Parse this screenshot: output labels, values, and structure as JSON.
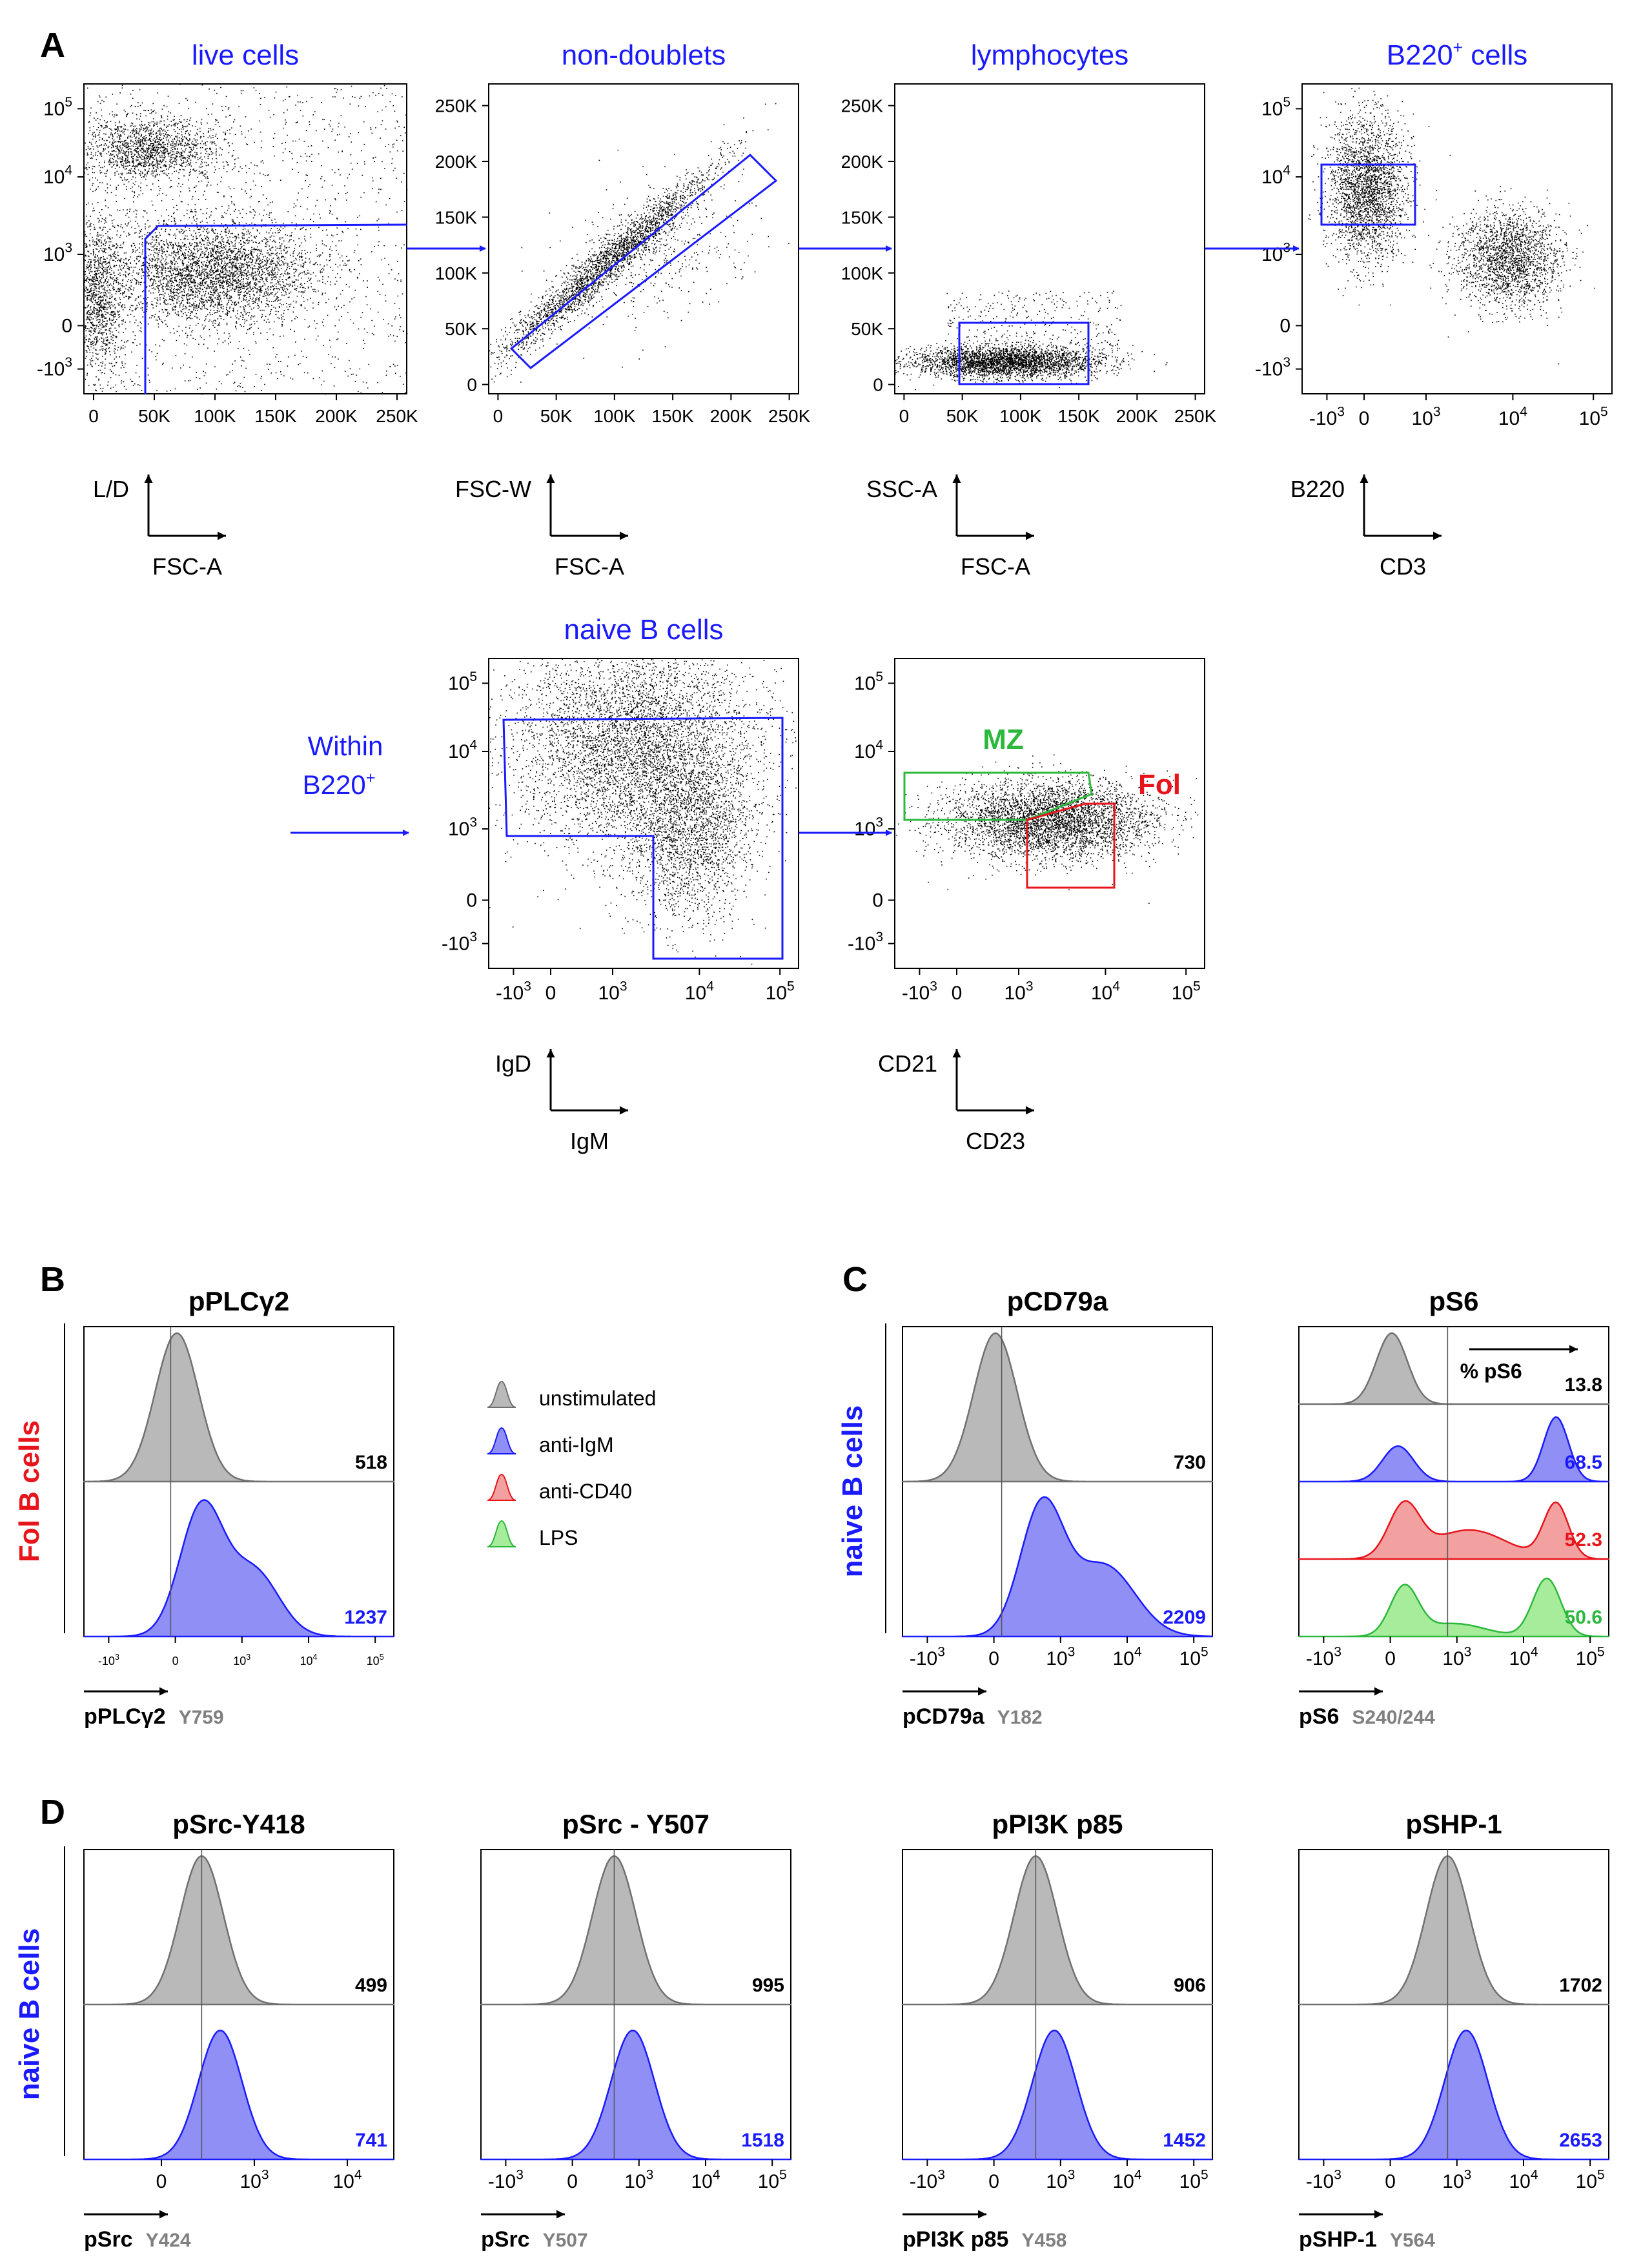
{
  "panel_letters": [
    "A",
    "B",
    "C",
    "D"
  ],
  "colors": {
    "blue": "#1a1aff",
    "red": "#e8141b",
    "green": "#2bb83c",
    "black": "#000000",
    "gray_fill": "#b9b9b9",
    "blue_fill": "#8f8ff5",
    "red_fill": "#f3a0a0",
    "green_fill": "#a6ec9a",
    "value_gray": "#808080"
  },
  "gating": {
    "axis_x": {
      "log": {
        "labels": [
          "-10",
          "0",
          "10",
          "10",
          "10"
        ],
        "exponents": [
          "3",
          "",
          "3",
          "4",
          "5"
        ]
      },
      "scatter_lin": [
        "0",
        "50K",
        "100K",
        "150K",
        "200K",
        "250K"
      ]
    },
    "axis_y": {
      "log": {
        "labels": [
          "-10",
          "0",
          "10",
          "10",
          "10"
        ],
        "exponents": [
          "3",
          "",
          "3",
          "4",
          "5"
        ]
      },
      "lin": [
        "0",
        "50K",
        "100K",
        "150K",
        "200K",
        "250K"
      ]
    },
    "plots": [
      {
        "title": "live cells",
        "ylab": "L/D",
        "xlab": "FSC-A"
      },
      {
        "title": "non-doublets",
        "ylab": "FSC-W",
        "xlab": "FSC-A"
      },
      {
        "title": "lymphocytes",
        "ylab": "SSC-A",
        "xlab": "FSC-A"
      },
      {
        "title": "B220",
        "title_sup": "+",
        "title_rest": " cells",
        "ylab": "B220",
        "xlab": "CD3"
      },
      {
        "title": "naive B cells",
        "ylab": "IgD",
        "xlab": "IgM"
      },
      {
        "title": "",
        "ylab": "CD21",
        "xlab": "CD23",
        "gate_mz": "MZ",
        "gate_fol": "Fol"
      }
    ],
    "within": {
      "line1": "Within",
      "line2": "B220",
      "sup": "+"
    }
  },
  "legend": {
    "items": [
      {
        "label": "unstimulated",
        "color": "#b9b9b9",
        "edge": "#707070"
      },
      {
        "label": "anti-IgM",
        "color": "#8f8ff5",
        "edge": "#1a1aff"
      },
      {
        "label": "anti-CD40",
        "color": "#f3a0a0",
        "edge": "#e8141b"
      },
      {
        "label": "LPS",
        "color": "#a6ec9a",
        "edge": "#2bb83c"
      }
    ]
  },
  "row_labels": {
    "B": "Fol B cells",
    "C": "naive B cells",
    "D": "naive B cells"
  },
  "chart_data": [
    {
      "type": "area",
      "panel": "B",
      "title": "pPLCγ2",
      "xlabel": "pPLCγ2",
      "xlabel_site": "Y759",
      "x_scale": "biexponential",
      "tick_labels": [
        "-10",
        "0",
        "10",
        "10",
        "10"
      ],
      "tick_exponents": [
        "3",
        "",
        "3",
        "4",
        "5"
      ],
      "small_ticks": true,
      "series": [
        {
          "name": "unstimulated",
          "mfi": 518
        },
        {
          "name": "anti-IgM",
          "mfi": 1237
        }
      ]
    },
    {
      "type": "area",
      "panel": "C",
      "title": "pCD79a",
      "xlabel": "pCD79a",
      "xlabel_site": "Y182",
      "x_scale": "biexponential",
      "tick_labels": [
        "-10",
        "0",
        "10",
        "10",
        "10"
      ],
      "tick_exponents": [
        "3",
        "",
        "3",
        "4",
        "5"
      ],
      "series": [
        {
          "name": "unstimulated",
          "mfi": 730
        },
        {
          "name": "anti-IgM",
          "mfi": 2209
        }
      ]
    },
    {
      "type": "area",
      "panel": "C",
      "title": "pS6",
      "xlabel": "pS6",
      "xlabel_site": "S240/244",
      "x_scale": "biexponential",
      "tick_labels": [
        "-10",
        "0",
        "10",
        "10",
        "10"
      ],
      "tick_exponents": [
        "3",
        "",
        "3",
        "4",
        "5"
      ],
      "gate_label": "% pS6",
      "gate_sup": "+",
      "series": [
        {
          "name": "unstimulated",
          "percent_pS6_pos": 13.8
        },
        {
          "name": "anti-IgM",
          "percent_pS6_pos": 68.5
        },
        {
          "name": "anti-CD40",
          "percent_pS6_pos": 52.3
        },
        {
          "name": "LPS",
          "percent_pS6_pos": 50.6
        }
      ]
    },
    {
      "type": "area",
      "panel": "D",
      "title": "pSrc-Y418",
      "xlabel": "pSrc",
      "xlabel_site": "Y424",
      "x_scale": "biexponential",
      "tick_labels": [
        "0",
        "10",
        "10"
      ],
      "tick_exponents": [
        "",
        "3",
        "4"
      ],
      "series": [
        {
          "name": "unstimulated",
          "mfi": 499
        },
        {
          "name": "anti-IgM",
          "mfi": 741
        }
      ]
    },
    {
      "type": "area",
      "panel": "D",
      "title": "pSrc - Y507",
      "xlabel": "pSrc",
      "xlabel_site": "Y507",
      "x_scale": "biexponential",
      "tick_labels": [
        "-10",
        "0",
        "10",
        "10",
        "10"
      ],
      "tick_exponents": [
        "3",
        "",
        "3",
        "4",
        "5"
      ],
      "series": [
        {
          "name": "unstimulated",
          "mfi": 995
        },
        {
          "name": "anti-IgM",
          "mfi": 1518
        }
      ]
    },
    {
      "type": "area",
      "panel": "D",
      "title": "pPI3K p85",
      "xlabel": "pPI3K p85",
      "xlabel_site": "Y458",
      "x_scale": "biexponential",
      "tick_labels": [
        "-10",
        "0",
        "10",
        "10",
        "10"
      ],
      "tick_exponents": [
        "3",
        "",
        "3",
        "4",
        "5"
      ],
      "series": [
        {
          "name": "unstimulated",
          "mfi": 906
        },
        {
          "name": "anti-IgM",
          "mfi": 1452
        }
      ]
    },
    {
      "type": "area",
      "panel": "D",
      "title": "pSHP-1",
      "xlabel": "pSHP-1",
      "xlabel_site": "Y564",
      "x_scale": "biexponential",
      "tick_labels": [
        "-10",
        "0",
        "10",
        "10",
        "10"
      ],
      "tick_exponents": [
        "3",
        "",
        "3",
        "4",
        "5"
      ],
      "series": [
        {
          "name": "unstimulated",
          "mfi": 1702
        },
        {
          "name": "anti-IgM",
          "mfi": 2653
        }
      ]
    }
  ]
}
